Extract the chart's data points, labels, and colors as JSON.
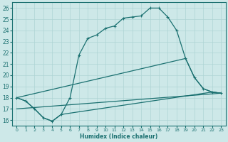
{
  "title": "",
  "xlabel": "Humidex (Indice chaleur)",
  "xlim": [
    -0.5,
    23.5
  ],
  "ylim": [
    15.5,
    26.5
  ],
  "xticks": [
    0,
    1,
    2,
    3,
    4,
    5,
    6,
    7,
    8,
    9,
    10,
    11,
    12,
    13,
    14,
    15,
    16,
    17,
    18,
    19,
    20,
    21,
    22,
    23
  ],
  "yticks": [
    16,
    17,
    18,
    19,
    20,
    21,
    22,
    23,
    24,
    25,
    26
  ],
  "bg_color": "#cde8e8",
  "line_color": "#1a7070",
  "grid_color": "#aed4d4",
  "line1_x": [
    0,
    1,
    2,
    3,
    4,
    5,
    6,
    7,
    8,
    9,
    10,
    11,
    12,
    13,
    14,
    15,
    16,
    17,
    18,
    19,
    20,
    21,
    22,
    23
  ],
  "line1_y": [
    18.0,
    17.7,
    17.0,
    16.2,
    15.9,
    16.5,
    18.0,
    21.8,
    23.3,
    23.6,
    24.2,
    24.4,
    25.1,
    25.2,
    25.3,
    26.0,
    26.0,
    25.2,
    24.0,
    21.5,
    19.8,
    18.8,
    18.5,
    18.4
  ],
  "line2_x": [
    0,
    1,
    2,
    3,
    4,
    5,
    22,
    23
  ],
  "line2_y": [
    18.0,
    17.7,
    17.0,
    16.2,
    15.9,
    16.5,
    18.5,
    18.4
  ],
  "line3_x": [
    0,
    23
  ],
  "line3_y": [
    17.0,
    18.4
  ],
  "line4_x": [
    0,
    19,
    20,
    21,
    22,
    23
  ],
  "line4_y": [
    18.0,
    21.5,
    19.8,
    18.8,
    18.5,
    18.4
  ]
}
